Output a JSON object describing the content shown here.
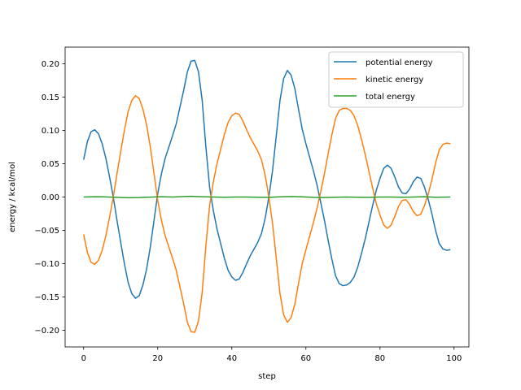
{
  "chart_data": {
    "type": "line",
    "title": "",
    "xlabel": "step",
    "ylabel": "energy / kcal/mol",
    "xlim": [
      -5,
      104
    ],
    "ylim": [
      -0.225,
      0.225
    ],
    "xticks": [
      0,
      20,
      40,
      60,
      80,
      100
    ],
    "yticks": [
      -0.2,
      -0.15,
      -0.1,
      -0.05,
      0.0,
      0.05,
      0.1,
      0.15,
      0.2
    ],
    "ytick_labels": [
      "−0.20",
      "−0.15",
      "−0.10",
      "−0.05",
      "0.00",
      "0.05",
      "0.10",
      "0.15",
      "0.20"
    ],
    "xtick_labels": [
      "0",
      "20",
      "40",
      "60",
      "80",
      "100"
    ],
    "grid": false,
    "legend_position": "top-right",
    "series": [
      {
        "name": "potential energy",
        "color": "#1f77b4",
        "points": [
          [
            0,
            0.056
          ],
          [
            1,
            0.083
          ],
          [
            2,
            0.098
          ],
          [
            3,
            0.101
          ],
          [
            4,
            0.095
          ],
          [
            5,
            0.08
          ],
          [
            6,
            0.058
          ],
          [
            7,
            0.03
          ],
          [
            8,
            0.0
          ],
          [
            9,
            -0.035
          ],
          [
            10,
            -0.068
          ],
          [
            11,
            -0.1
          ],
          [
            12,
            -0.128
          ],
          [
            13,
            -0.145
          ],
          [
            14,
            -0.152
          ],
          [
            15,
            -0.148
          ],
          [
            16,
            -0.132
          ],
          [
            17,
            -0.108
          ],
          [
            18,
            -0.075
          ],
          [
            19,
            -0.035
          ],
          [
            20,
            0.005
          ],
          [
            21,
            0.035
          ],
          [
            22,
            0.058
          ],
          [
            23,
            0.075
          ],
          [
            24,
            0.092
          ],
          [
            25,
            0.11
          ],
          [
            26,
            0.135
          ],
          [
            27,
            0.16
          ],
          [
            28,
            0.188
          ],
          [
            29,
            0.204
          ],
          [
            30,
            0.205
          ],
          [
            31,
            0.188
          ],
          [
            32,
            0.145
          ],
          [
            33,
            0.075
          ],
          [
            34,
            0.015
          ],
          [
            35,
            -0.02
          ],
          [
            36,
            -0.048
          ],
          [
            37,
            -0.07
          ],
          [
            38,
            -0.092
          ],
          [
            39,
            -0.11
          ],
          [
            40,
            -0.12
          ],
          [
            41,
            -0.125
          ],
          [
            42,
            -0.123
          ],
          [
            43,
            -0.113
          ],
          [
            44,
            -0.1
          ],
          [
            45,
            -0.088
          ],
          [
            46,
            -0.078
          ],
          [
            47,
            -0.068
          ],
          [
            48,
            -0.055
          ],
          [
            49,
            -0.032
          ],
          [
            50,
            0.0
          ],
          [
            51,
            0.04
          ],
          [
            52,
            0.092
          ],
          [
            53,
            0.145
          ],
          [
            54,
            0.178
          ],
          [
            55,
            0.19
          ],
          [
            56,
            0.183
          ],
          [
            57,
            0.163
          ],
          [
            58,
            0.132
          ],
          [
            59,
            0.102
          ],
          [
            60,
            0.08
          ],
          [
            61,
            0.06
          ],
          [
            62,
            0.04
          ],
          [
            63,
            0.018
          ],
          [
            64,
            -0.008
          ],
          [
            65,
            -0.035
          ],
          [
            66,
            -0.065
          ],
          [
            67,
            -0.093
          ],
          [
            68,
            -0.118
          ],
          [
            69,
            -0.13
          ],
          [
            70,
            -0.133
          ],
          [
            71,
            -0.132
          ],
          [
            72,
            -0.128
          ],
          [
            73,
            -0.12
          ],
          [
            74,
            -0.105
          ],
          [
            75,
            -0.085
          ],
          [
            76,
            -0.063
          ],
          [
            77,
            -0.038
          ],
          [
            78,
            -0.013
          ],
          [
            79,
            0.01
          ],
          [
            80,
            0.028
          ],
          [
            81,
            0.043
          ],
          [
            82,
            0.048
          ],
          [
            83,
            0.043
          ],
          [
            84,
            0.03
          ],
          [
            85,
            0.015
          ],
          [
            86,
            0.006
          ],
          [
            87,
            0.005
          ],
          [
            88,
            0.012
          ],
          [
            89,
            0.023
          ],
          [
            90,
            0.03
          ],
          [
            91,
            0.028
          ],
          [
            92,
            0.015
          ],
          [
            93,
            -0.003
          ],
          [
            94,
            -0.025
          ],
          [
            95,
            -0.05
          ],
          [
            96,
            -0.07
          ],
          [
            97,
            -0.078
          ],
          [
            98,
            -0.08
          ],
          [
            99,
            -0.079
          ]
        ]
      },
      {
        "name": "kinetic energy",
        "color": "#ff7f0e",
        "points": [
          [
            0,
            -0.056
          ],
          [
            1,
            -0.083
          ],
          [
            2,
            -0.098
          ],
          [
            3,
            -0.101
          ],
          [
            4,
            -0.095
          ],
          [
            5,
            -0.08
          ],
          [
            6,
            -0.058
          ],
          [
            7,
            -0.03
          ],
          [
            8,
            0.0
          ],
          [
            9,
            0.035
          ],
          [
            10,
            0.068
          ],
          [
            11,
            0.1
          ],
          [
            12,
            0.128
          ],
          [
            13,
            0.145
          ],
          [
            14,
            0.152
          ],
          [
            15,
            0.148
          ],
          [
            16,
            0.132
          ],
          [
            17,
            0.108
          ],
          [
            18,
            0.075
          ],
          [
            19,
            0.035
          ],
          [
            20,
            -0.005
          ],
          [
            21,
            -0.035
          ],
          [
            22,
            -0.058
          ],
          [
            23,
            -0.075
          ],
          [
            24,
            -0.092
          ],
          [
            25,
            -0.11
          ],
          [
            26,
            -0.135
          ],
          [
            27,
            -0.16
          ],
          [
            28,
            -0.188
          ],
          [
            29,
            -0.202
          ],
          [
            30,
            -0.203
          ],
          [
            31,
            -0.186
          ],
          [
            32,
            -0.143
          ],
          [
            33,
            -0.073
          ],
          [
            34,
            -0.013
          ],
          [
            35,
            0.022
          ],
          [
            36,
            0.05
          ],
          [
            37,
            0.072
          ],
          [
            38,
            0.094
          ],
          [
            39,
            0.112
          ],
          [
            40,
            0.122
          ],
          [
            41,
            0.126
          ],
          [
            42,
            0.124
          ],
          [
            43,
            0.114
          ],
          [
            44,
            0.101
          ],
          [
            45,
            0.089
          ],
          [
            46,
            0.079
          ],
          [
            47,
            0.069
          ],
          [
            48,
            0.056
          ],
          [
            49,
            0.033
          ],
          [
            50,
            0.0
          ],
          [
            51,
            -0.04
          ],
          [
            52,
            -0.092
          ],
          [
            53,
            -0.145
          ],
          [
            54,
            -0.177
          ],
          [
            55,
            -0.188
          ],
          [
            56,
            -0.181
          ],
          [
            57,
            -0.161
          ],
          [
            58,
            -0.13
          ],
          [
            59,
            -0.1
          ],
          [
            60,
            -0.079
          ],
          [
            61,
            -0.059
          ],
          [
            62,
            -0.039
          ],
          [
            63,
            -0.017
          ],
          [
            64,
            0.008
          ],
          [
            65,
            0.035
          ],
          [
            66,
            0.065
          ],
          [
            67,
            0.093
          ],
          [
            68,
            0.118
          ],
          [
            69,
            0.13
          ],
          [
            70,
            0.133
          ],
          [
            71,
            0.133
          ],
          [
            72,
            0.13
          ],
          [
            73,
            0.122
          ],
          [
            74,
            0.107
          ],
          [
            75,
            0.087
          ],
          [
            76,
            0.064
          ],
          [
            77,
            0.039
          ],
          [
            78,
            0.014
          ],
          [
            79,
            -0.01
          ],
          [
            80,
            -0.027
          ],
          [
            81,
            -0.042
          ],
          [
            82,
            -0.047
          ],
          [
            83,
            -0.042
          ],
          [
            84,
            -0.029
          ],
          [
            85,
            -0.014
          ],
          [
            86,
            -0.005
          ],
          [
            87,
            -0.004
          ],
          [
            88,
            -0.011
          ],
          [
            89,
            -0.022
          ],
          [
            90,
            -0.028
          ],
          [
            91,
            -0.026
          ],
          [
            92,
            -0.013
          ],
          [
            93,
            0.004
          ],
          [
            94,
            0.026
          ],
          [
            95,
            0.051
          ],
          [
            96,
            0.071
          ],
          [
            97,
            0.079
          ],
          [
            98,
            0.081
          ],
          [
            99,
            0.08
          ]
        ]
      },
      {
        "name": "total energy",
        "color": "#2ca02c",
        "points": [
          [
            0,
            0.0
          ],
          [
            3,
            0.0005
          ],
          [
            6,
            0.0002
          ],
          [
            9,
            -0.0005
          ],
          [
            12,
            -0.001
          ],
          [
            15,
            -0.0008
          ],
          [
            18,
            -0.0002
          ],
          [
            21,
            0.0005
          ],
          [
            24,
            0.0
          ],
          [
            27,
            0.0008
          ],
          [
            29,
            0.001
          ],
          [
            32,
            0.0005
          ],
          [
            35,
            0.0
          ],
          [
            38,
            -0.0003
          ],
          [
            41,
            0.0
          ],
          [
            44,
            0.0
          ],
          [
            47,
            -0.0003
          ],
          [
            50,
            -0.0005
          ],
          [
            53,
            0.0003
          ],
          [
            56,
            0.0008
          ],
          [
            59,
            0.0003
          ],
          [
            62,
            -0.0005
          ],
          [
            65,
            -0.0008
          ],
          [
            68,
            -0.0003
          ],
          [
            71,
            0.0
          ],
          [
            74,
            -0.0003
          ],
          [
            77,
            -0.0005
          ],
          [
            80,
            0.0
          ],
          [
            83,
            0.0
          ],
          [
            86,
            -0.0003
          ],
          [
            89,
            0.0
          ],
          [
            92,
            0.0005
          ],
          [
            95,
            -0.0003
          ],
          [
            99,
            0.0
          ]
        ]
      }
    ]
  }
}
